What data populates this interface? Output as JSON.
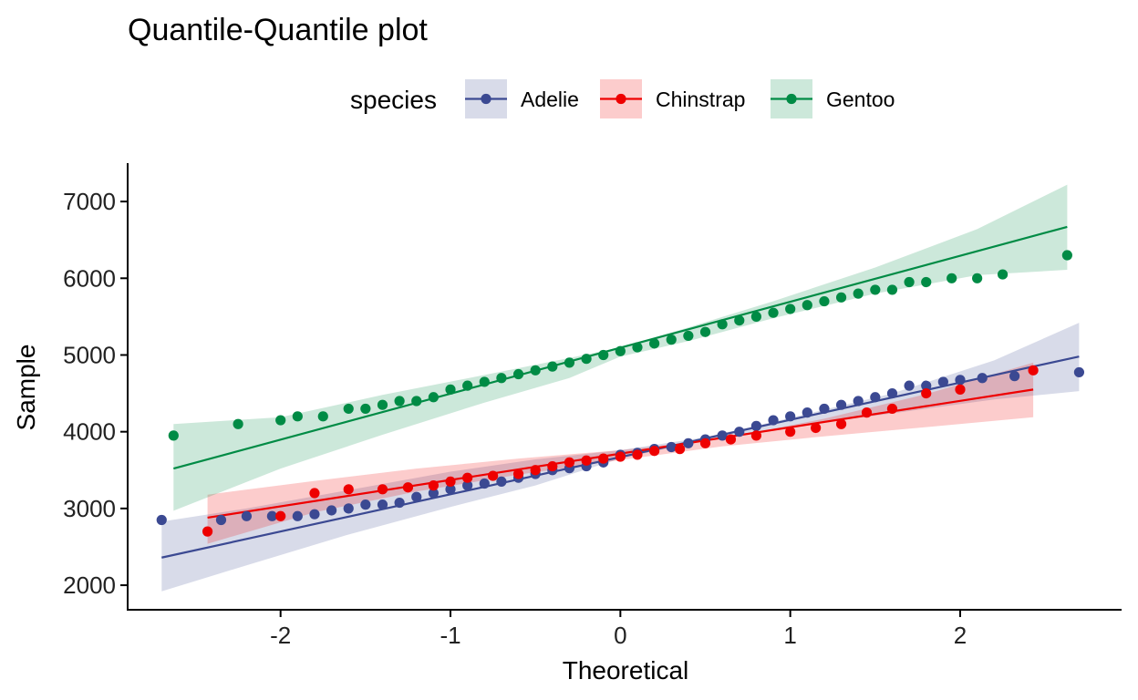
{
  "chart_data": {
    "type": "scatter",
    "title": "Quantile-Quantile plot",
    "xlabel": "Theoretical",
    "ylabel": "Sample",
    "xlim": [
      -2.9,
      2.95
    ],
    "ylim": [
      1680,
      7500
    ],
    "xticks": [
      -2,
      -1,
      0,
      1,
      2
    ],
    "xtick_labels": [
      "-2",
      "-1",
      "0",
      "1",
      "2"
    ],
    "yticks": [
      2000,
      3000,
      4000,
      5000,
      6000,
      7000
    ],
    "ytick_labels": [
      "2000",
      "3000",
      "4000",
      "5000",
      "6000",
      "7000"
    ],
    "grid": false,
    "legend": {
      "title": "species",
      "position": "top"
    },
    "series": [
      {
        "name": "Adelie",
        "color": "#3B4992",
        "band_color": "#3B4992",
        "line": {
          "x": [
            -2.7,
            2.7
          ],
          "y": [
            2360,
            4980
          ]
        },
        "band": {
          "x": [
            -2.7,
            -2.2,
            -1.6,
            -1.0,
            -0.5,
            0.0,
            0.5,
            1.0,
            1.6,
            2.2,
            2.7
          ],
          "upper": [
            2830,
            3000,
            3240,
            3480,
            3640,
            3760,
            3930,
            4180,
            4500,
            4930,
            5420
          ],
          "lower": [
            1920,
            2260,
            2660,
            3020,
            3300,
            3650,
            3890,
            4060,
            4240,
            4420,
            4530
          ]
        },
        "points": [
          [
            -2.7,
            2850
          ],
          [
            -2.35,
            2850
          ],
          [
            -2.2,
            2900
          ],
          [
            -2.05,
            2900
          ],
          [
            -1.9,
            2900
          ],
          [
            -1.8,
            2925
          ],
          [
            -1.7,
            2975
          ],
          [
            -1.6,
            3000
          ],
          [
            -1.5,
            3050
          ],
          [
            -1.4,
            3050
          ],
          [
            -1.3,
            3075
          ],
          [
            -1.2,
            3150
          ],
          [
            -1.1,
            3200
          ],
          [
            -1.0,
            3250
          ],
          [
            -0.9,
            3300
          ],
          [
            -0.8,
            3325
          ],
          [
            -0.7,
            3350
          ],
          [
            -0.6,
            3400
          ],
          [
            -0.5,
            3450
          ],
          [
            -0.4,
            3500
          ],
          [
            -0.3,
            3525
          ],
          [
            -0.2,
            3550
          ],
          [
            -0.1,
            3600
          ],
          [
            0.0,
            3700
          ],
          [
            0.1,
            3725
          ],
          [
            0.2,
            3775
          ],
          [
            0.3,
            3800
          ],
          [
            0.4,
            3850
          ],
          [
            0.5,
            3900
          ],
          [
            0.6,
            3950
          ],
          [
            0.7,
            4000
          ],
          [
            0.8,
            4075
          ],
          [
            0.9,
            4150
          ],
          [
            1.0,
            4200
          ],
          [
            1.1,
            4250
          ],
          [
            1.2,
            4300
          ],
          [
            1.3,
            4350
          ],
          [
            1.4,
            4400
          ],
          [
            1.5,
            4450
          ],
          [
            1.6,
            4500
          ],
          [
            1.7,
            4600
          ],
          [
            1.8,
            4600
          ],
          [
            1.9,
            4650
          ],
          [
            2.0,
            4675
          ],
          [
            2.13,
            4700
          ],
          [
            2.32,
            4725
          ],
          [
            2.7,
            4775
          ]
        ]
      },
      {
        "name": "Chinstrap",
        "color": "#EE0000",
        "band_color": "#EE0000",
        "line": {
          "x": [
            -2.43,
            2.43
          ],
          "y": [
            2880,
            4550
          ]
        },
        "band": {
          "x": [
            -2.43,
            -1.8,
            -1.2,
            -0.6,
            0.0,
            0.6,
            1.2,
            1.8,
            2.43
          ],
          "upper": [
            3180,
            3360,
            3520,
            3650,
            3760,
            3910,
            4170,
            4490,
            4900
          ],
          "lower": [
            2540,
            2950,
            3220,
            3440,
            3630,
            3810,
            3940,
            4060,
            4190
          ]
        },
        "points": [
          [
            -2.43,
            2700
          ],
          [
            -2.0,
            2900
          ],
          [
            -1.8,
            3200
          ],
          [
            -1.6,
            3250
          ],
          [
            -1.4,
            3250
          ],
          [
            -1.25,
            3275
          ],
          [
            -1.1,
            3300
          ],
          [
            -1.0,
            3350
          ],
          [
            -0.9,
            3400
          ],
          [
            -0.75,
            3425
          ],
          [
            -0.6,
            3450
          ],
          [
            -0.5,
            3500
          ],
          [
            -0.4,
            3550
          ],
          [
            -0.3,
            3600
          ],
          [
            -0.2,
            3625
          ],
          [
            -0.1,
            3650
          ],
          [
            0.0,
            3675
          ],
          [
            0.1,
            3700
          ],
          [
            0.2,
            3750
          ],
          [
            0.35,
            3775
          ],
          [
            0.5,
            3850
          ],
          [
            0.65,
            3900
          ],
          [
            0.8,
            3950
          ],
          [
            1.0,
            4000
          ],
          [
            1.15,
            4050
          ],
          [
            1.3,
            4100
          ],
          [
            1.45,
            4250
          ],
          [
            1.6,
            4300
          ],
          [
            1.8,
            4500
          ],
          [
            2.0,
            4550
          ],
          [
            2.43,
            4800
          ]
        ]
      },
      {
        "name": "Gentoo",
        "color": "#008B45",
        "band_color": "#008B45",
        "line": {
          "x": [
            -2.63,
            2.63
          ],
          "y": [
            3520,
            6670
          ]
        },
        "band": {
          "x": [
            -2.63,
            -2.0,
            -1.4,
            -0.8,
            -0.3,
            0.0,
            0.4,
            0.9,
            1.5,
            2.1,
            2.63
          ],
          "upper": [
            4100,
            4190,
            4480,
            4740,
            4960,
            5100,
            5360,
            5700,
            6140,
            6640,
            7220
          ],
          "lower": [
            2970,
            3520,
            3960,
            4380,
            4700,
            4980,
            5180,
            5480,
            5800,
            6040,
            6110
          ]
        },
        "points": [
          [
            -2.63,
            3950
          ],
          [
            -2.25,
            4100
          ],
          [
            -2.0,
            4150
          ],
          [
            -1.9,
            4200
          ],
          [
            -1.75,
            4200
          ],
          [
            -1.6,
            4300
          ],
          [
            -1.5,
            4300
          ],
          [
            -1.4,
            4350
          ],
          [
            -1.3,
            4400
          ],
          [
            -1.2,
            4400
          ],
          [
            -1.1,
            4450
          ],
          [
            -1.0,
            4550
          ],
          [
            -0.9,
            4600
          ],
          [
            -0.8,
            4650
          ],
          [
            -0.7,
            4700
          ],
          [
            -0.6,
            4750
          ],
          [
            -0.5,
            4800
          ],
          [
            -0.4,
            4850
          ],
          [
            -0.3,
            4900
          ],
          [
            -0.2,
            4950
          ],
          [
            -0.1,
            5000
          ],
          [
            0.0,
            5050
          ],
          [
            0.1,
            5100
          ],
          [
            0.2,
            5150
          ],
          [
            0.3,
            5200
          ],
          [
            0.4,
            5250
          ],
          [
            0.5,
            5300
          ],
          [
            0.6,
            5400
          ],
          [
            0.7,
            5450
          ],
          [
            0.8,
            5500
          ],
          [
            0.9,
            5550
          ],
          [
            1.0,
            5600
          ],
          [
            1.1,
            5650
          ],
          [
            1.2,
            5700
          ],
          [
            1.3,
            5750
          ],
          [
            1.4,
            5800
          ],
          [
            1.5,
            5850
          ],
          [
            1.6,
            5850
          ],
          [
            1.7,
            5950
          ],
          [
            1.8,
            5950
          ],
          [
            1.95,
            6000
          ],
          [
            2.1,
            6000
          ],
          [
            2.25,
            6050
          ],
          [
            2.63,
            6300
          ]
        ]
      }
    ]
  }
}
